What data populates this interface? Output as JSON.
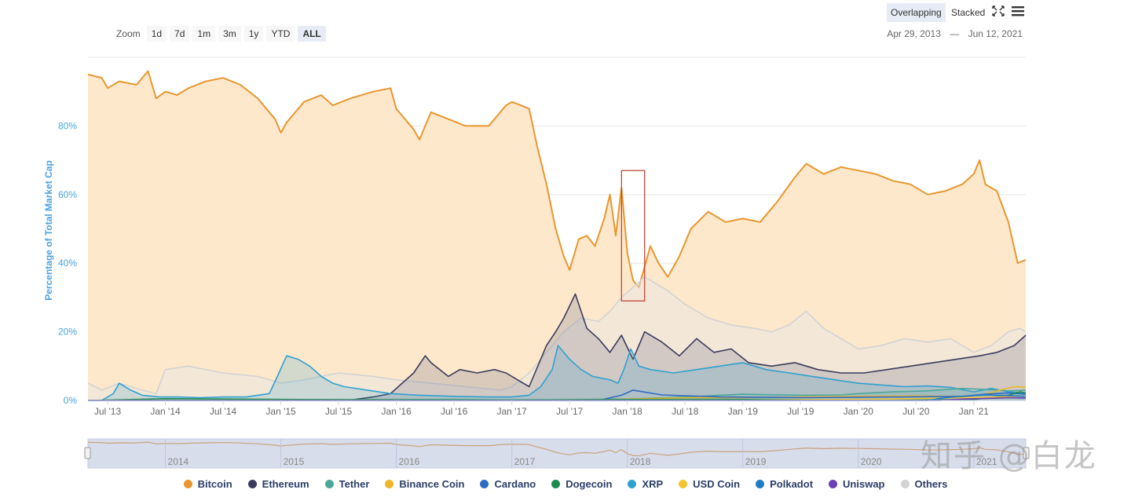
{
  "toolbar": {
    "zoom_label": "Zoom",
    "zoom_buttons": [
      "1d",
      "7d",
      "1m",
      "3m",
      "1y",
      "YTD",
      "ALL"
    ],
    "active_zoom": "ALL",
    "date_from": "Apr 29, 2013",
    "date_sep": "—",
    "date_to": "Jun 12, 2021",
    "mode_overlapping": "Overlapping",
    "mode_stacked": "Stacked",
    "active_mode": "Overlapping"
  },
  "colors": {
    "bitcoin": "#e8962f",
    "bitcoin_fill": "#fde8cc",
    "ethereum": "#3b3b5c",
    "tether": "#4aa89a",
    "binance": "#f0b528",
    "cardano": "#2f6ac4",
    "dogecoin": "#1b8a4e",
    "xrp": "#2fa0cf",
    "usdcoin": "#f5c431",
    "polkadot": "#1f7cc4",
    "uniswap": "#6b3fb5",
    "others": "#d3d3d3",
    "axis_label": "#4aa3df",
    "highlight_box": "#c0392b",
    "navigator_fill": "#d8ddec"
  },
  "chart_data": {
    "type": "area",
    "title": "",
    "ylabel": "Percentage of Total Market Cap",
    "xlabel": "",
    "x_range": [
      2013.33,
      2021.45
    ],
    "ylim": [
      0,
      100
    ],
    "y_ticks": [
      0,
      20,
      40,
      60,
      80
    ],
    "y_tick_labels": [
      "0%",
      "20%",
      "40%",
      "60%",
      "80%"
    ],
    "x_ticks": [
      2013.5,
      2014.0,
      2014.5,
      2015.0,
      2015.5,
      2016.0,
      2016.5,
      2017.0,
      2017.5,
      2018.0,
      2018.5,
      2019.0,
      2019.5,
      2020.0,
      2020.5,
      2021.0
    ],
    "x_tick_labels": [
      "Jul '13",
      "Jan '14",
      "Jul '14",
      "Jan '15",
      "Jul '15",
      "Jan '16",
      "Jul '16",
      "Jan '17",
      "Jul '17",
      "Jan '18",
      "Jul '18",
      "Jan '19",
      "Jul '19",
      "Jan '20",
      "Jul '20",
      "Jan '21"
    ],
    "navigator_labels": [
      "2014",
      "2015",
      "2016",
      "2017",
      "2018",
      "2019",
      "2020",
      "2021"
    ],
    "navigator_ticks": [
      2014.0,
      2015.0,
      2016.0,
      2017.0,
      2018.0,
      2019.0,
      2020.0,
      2021.0
    ],
    "highlight_range": {
      "x": [
        2017.95,
        2018.15
      ],
      "y": [
        29,
        67
      ]
    },
    "series": [
      {
        "name": "Bitcoin",
        "key": "bitcoin",
        "x": [
          2013.33,
          2013.45,
          2013.5,
          2013.6,
          2013.75,
          2013.85,
          2013.92,
          2014.0,
          2014.1,
          2014.2,
          2014.35,
          2014.5,
          2014.65,
          2014.8,
          2014.95,
          2015.0,
          2015.05,
          2015.2,
          2015.35,
          2015.45,
          2015.6,
          2015.8,
          2015.95,
          2016.0,
          2016.15,
          2016.2,
          2016.3,
          2016.45,
          2016.6,
          2016.8,
          2016.95,
          2017.0,
          2017.08,
          2017.15,
          2017.22,
          2017.3,
          2017.38,
          2017.45,
          2017.5,
          2017.58,
          2017.65,
          2017.72,
          2017.8,
          2017.85,
          2017.9,
          2017.95,
          2018.0,
          2018.05,
          2018.1,
          2018.2,
          2018.27,
          2018.35,
          2018.45,
          2018.55,
          2018.7,
          2018.85,
          2019.0,
          2019.15,
          2019.3,
          2019.45,
          2019.55,
          2019.7,
          2019.85,
          2020.0,
          2020.15,
          2020.3,
          2020.45,
          2020.6,
          2020.75,
          2020.9,
          2021.0,
          2021.05,
          2021.1,
          2021.2,
          2021.3,
          2021.38,
          2021.45
        ],
        "values": [
          95,
          94,
          91,
          93,
          92,
          96,
          88,
          90,
          89,
          91,
          93,
          94,
          92,
          88,
          82,
          78,
          81,
          87,
          89,
          86,
          88,
          90,
          91,
          85,
          79,
          76,
          84,
          82,
          80,
          80,
          86,
          87,
          86,
          85,
          74,
          63,
          50,
          42,
          38,
          47,
          48,
          45,
          53,
          60,
          48,
          62,
          43,
          35,
          33,
          45,
          40,
          36,
          42,
          50,
          55,
          52,
          53,
          52,
          58,
          65,
          69,
          66,
          68,
          67,
          66,
          64,
          63,
          60,
          61,
          63,
          66,
          70,
          63,
          61,
          52,
          40,
          41
        ]
      },
      {
        "name": "Ethereum",
        "key": "ethereum",
        "x": [
          2013.33,
          2015.58,
          2015.8,
          2015.95,
          2016.05,
          2016.15,
          2016.25,
          2016.3,
          2016.45,
          2016.55,
          2016.7,
          2016.85,
          2016.95,
          2017.05,
          2017.15,
          2017.2,
          2017.3,
          2017.38,
          2017.45,
          2017.55,
          2017.65,
          2017.75,
          2017.85,
          2017.95,
          2018.05,
          2018.15,
          2018.3,
          2018.45,
          2018.6,
          2018.75,
          2018.9,
          2019.05,
          2019.25,
          2019.45,
          2019.65,
          2019.85,
          2020.05,
          2020.25,
          2020.45,
          2020.65,
          2020.85,
          2021.05,
          2021.2,
          2021.35,
          2021.45
        ],
        "values": [
          0,
          0,
          1,
          2,
          5,
          8,
          13,
          11,
          7,
          9,
          8,
          9,
          8,
          6,
          4,
          8,
          16,
          20,
          24,
          31,
          21,
          18,
          14,
          19,
          12,
          20,
          17,
          13,
          18,
          14,
          15,
          11,
          10,
          11,
          9,
          8,
          8,
          9,
          10,
          11,
          12,
          13,
          14,
          16,
          19
        ]
      },
      {
        "name": "Tether",
        "key": "tether",
        "x": [
          2013.33,
          2015.0,
          2015.6,
          2016.0,
          2016.5,
          2017.0,
          2017.5,
          2018.0,
          2018.5,
          2019.0,
          2019.5,
          2019.85,
          2020.0,
          2020.3,
          2020.6,
          2020.9,
          2021.1,
          2021.3,
          2021.45
        ],
        "values": [
          0,
          0,
          0,
          0.2,
          0.3,
          0.2,
          0.2,
          0.4,
          1.0,
          1.8,
          1.5,
          1.6,
          2.0,
          2.5,
          2.8,
          3.5,
          3.2,
          2.8,
          3.0
        ]
      },
      {
        "name": "Binance Coin",
        "key": "binance",
        "x": [
          2013.33,
          2017.5,
          2018.0,
          2018.5,
          2019.0,
          2019.5,
          2020.0,
          2020.5,
          2020.9,
          2021.1,
          2021.25,
          2021.35,
          2021.45
        ],
        "values": [
          0,
          0,
          0.4,
          0.8,
          0.8,
          1.0,
          1.2,
          1.3,
          1.2,
          1.8,
          3.2,
          4.0,
          3.8
        ]
      },
      {
        "name": "Cardano",
        "key": "cardano",
        "x": [
          2013.33,
          2017.75,
          2017.95,
          2018.05,
          2018.3,
          2018.8,
          2019.5,
          2020.3,
          2020.9,
          2021.1,
          2021.3,
          2021.45
        ],
        "values": [
          0,
          0,
          1.5,
          3.0,
          1.6,
          1.0,
          0.8,
          1.0,
          1.2,
          1.8,
          2.2,
          1.8
        ]
      },
      {
        "name": "Dogecoin",
        "key": "dogecoin",
        "x": [
          2013.33,
          2014.0,
          2015.0,
          2016.0,
          2017.0,
          2018.0,
          2019.0,
          2020.0,
          2021.0,
          2021.05,
          2021.3,
          2021.4,
          2021.45
        ],
        "values": [
          0,
          0.5,
          0.3,
          0.2,
          0.1,
          0.3,
          0.3,
          0.2,
          0.2,
          0.5,
          1.5,
          2.5,
          2.2
        ]
      },
      {
        "name": "XRP",
        "key": "xrp",
        "x": [
          2013.33,
          2013.45,
          2013.55,
          2013.6,
          2013.7,
          2013.8,
          2013.95,
          2014.1,
          2014.3,
          2014.5,
          2014.7,
          2014.9,
          2014.97,
          2015.05,
          2015.15,
          2015.25,
          2015.35,
          2015.45,
          2015.55,
          2015.75,
          2015.95,
          2016.2,
          2016.5,
          2016.8,
          2017.0,
          2017.15,
          2017.25,
          2017.35,
          2017.4,
          2017.5,
          2017.6,
          2017.7,
          2017.85,
          2017.92,
          2017.97,
          2018.03,
          2018.1,
          2018.2,
          2018.4,
          2018.6,
          2018.8,
          2019.0,
          2019.2,
          2019.4,
          2019.6,
          2019.8,
          2020.0,
          2020.2,
          2020.4,
          2020.6,
          2020.8,
          2021.0,
          2021.15,
          2021.3,
          2021.45
        ],
        "values": [
          0,
          0,
          2,
          5,
          3,
          1.5,
          1,
          1,
          0.8,
          1,
          1,
          2,
          7,
          13,
          12,
          10,
          7,
          5,
          4,
          3,
          2,
          1.5,
          1.2,
          1,
          1,
          1.5,
          4,
          9,
          16,
          12,
          9,
          7,
          6,
          5,
          9,
          15,
          10,
          9,
          8,
          9,
          10,
          11,
          9,
          8,
          7,
          6,
          5,
          4.5,
          4,
          4.2,
          3.8,
          2.5,
          3.5,
          2.5,
          2.2
        ]
      },
      {
        "name": "USD Coin",
        "key": "usdcoin",
        "x": [
          2013.33,
          2018.8,
          2019.5,
          2020.0,
          2020.5,
          2020.9,
          2021.1,
          2021.3,
          2021.45
        ],
        "values": [
          0,
          0,
          0.2,
          0.3,
          0.5,
          0.8,
          0.9,
          1.1,
          1.3
        ]
      },
      {
        "name": "Polkadot",
        "key": "polkadot",
        "x": [
          2013.33,
          2020.6,
          2020.75,
          2020.9,
          2021.1,
          2021.3,
          2021.45
        ],
        "values": [
          0,
          0,
          0.8,
          1.2,
          1.6,
          1.4,
          1.2
        ]
      },
      {
        "name": "Uniswap",
        "key": "uniswap",
        "x": [
          2013.33,
          2020.7,
          2020.9,
          2021.1,
          2021.3,
          2021.45
        ],
        "values": [
          0,
          0,
          0.4,
          0.6,
          0.8,
          0.7
        ]
      },
      {
        "name": "Others",
        "key": "others",
        "x": [
          2013.33,
          2013.45,
          2013.6,
          2013.8,
          2013.92,
          2014.0,
          2014.2,
          2014.5,
          2014.8,
          2015.0,
          2015.2,
          2015.5,
          2015.8,
          2016.0,
          2016.3,
          2016.6,
          2016.9,
          2017.0,
          2017.15,
          2017.3,
          2017.45,
          2017.6,
          2017.75,
          2017.85,
          2017.95,
          2018.05,
          2018.15,
          2018.25,
          2018.35,
          2018.5,
          2018.7,
          2018.9,
          2019.1,
          2019.25,
          2019.4,
          2019.55,
          2019.7,
          2019.85,
          2020.0,
          2020.2,
          2020.4,
          2020.6,
          2020.8,
          2021.0,
          2021.15,
          2021.3,
          2021.4,
          2021.45
        ],
        "values": [
          5,
          3,
          5,
          3,
          2,
          9,
          10,
          8,
          7,
          5,
          6,
          8,
          7,
          6,
          5,
          4,
          3,
          4,
          8,
          14,
          20,
          24,
          23,
          26,
          30,
          33,
          36,
          34,
          32,
          28,
          24,
          22,
          21,
          20,
          22,
          26,
          21,
          18,
          15,
          16,
          18,
          17,
          18,
          14,
          16,
          20,
          21,
          20
        ]
      }
    ]
  }
}
